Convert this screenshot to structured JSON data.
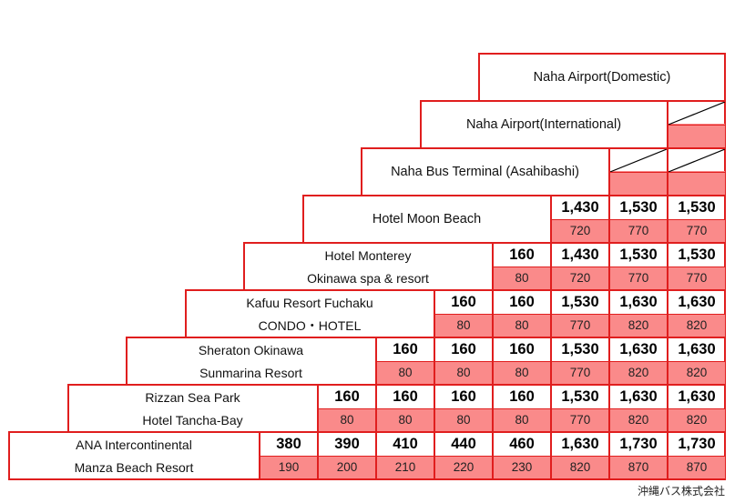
{
  "stops": [
    {
      "id": "domestic",
      "lines": [
        "Naha Airport(Domestic)"
      ]
    },
    {
      "id": "international",
      "lines": [
        "Naha Airport(International)"
      ]
    },
    {
      "id": "bus-terminal",
      "lines": [
        "Naha Bus Terminal (Asahibashi)"
      ]
    },
    {
      "id": "moon-beach",
      "lines": [
        "Hotel  Moon  Beach"
      ]
    },
    {
      "id": "monterey",
      "lines": [
        "Hotel Monterey",
        "Okinawa spa & resort"
      ]
    },
    {
      "id": "kafuu",
      "lines": [
        "Kafuu Resort Fuchaku",
        "CONDO・HOTEL"
      ]
    },
    {
      "id": "sheraton",
      "lines": [
        "Sheraton Okinawa",
        "Sunmarina Resort"
      ]
    },
    {
      "id": "rizzan",
      "lines": [
        "Rizzan Sea Park",
        "Hotel Tancha-Bay"
      ]
    },
    {
      "id": "ana",
      "lines": [
        "ANA Intercontinental",
        "Manza Beach Resort"
      ]
    }
  ],
  "fares": [
    [],
    [],
    [],
    [
      {
        "adult": "1,430",
        "child": "720"
      },
      {
        "adult": "1,530",
        "child": "770"
      },
      {
        "adult": "1,530",
        "child": "770"
      }
    ],
    [
      {
        "adult": "160",
        "child": "80"
      },
      {
        "adult": "1,430",
        "child": "720"
      },
      {
        "adult": "1,530",
        "child": "770"
      },
      {
        "adult": "1,530",
        "child": "770"
      }
    ],
    [
      {
        "adult": "160",
        "child": "80"
      },
      {
        "adult": "160",
        "child": "80"
      },
      {
        "adult": "1,530",
        "child": "770"
      },
      {
        "adult": "1,630",
        "child": "820"
      },
      {
        "adult": "1,630",
        "child": "820"
      }
    ],
    [
      {
        "adult": "160",
        "child": "80"
      },
      {
        "adult": "160",
        "child": "80"
      },
      {
        "adult": "160",
        "child": "80"
      },
      {
        "adult": "1,530",
        "child": "770"
      },
      {
        "adult": "1,630",
        "child": "820"
      },
      {
        "adult": "1,630",
        "child": "820"
      }
    ],
    [
      {
        "adult": "160",
        "child": "80"
      },
      {
        "adult": "160",
        "child": "80"
      },
      {
        "adult": "160",
        "child": "80"
      },
      {
        "adult": "160",
        "child": "80"
      },
      {
        "adult": "1,530",
        "child": "770"
      },
      {
        "adult": "1,630",
        "child": "820"
      },
      {
        "adult": "1,630",
        "child": "820"
      }
    ],
    [
      {
        "adult": "380",
        "child": "190"
      },
      {
        "adult": "390",
        "child": "200"
      },
      {
        "adult": "410",
        "child": "210"
      },
      {
        "adult": "440",
        "child": "220"
      },
      {
        "adult": "460",
        "child": "230"
      },
      {
        "adult": "1,630",
        "child": "820"
      },
      {
        "adult": "1,730",
        "child": "870"
      },
      {
        "adult": "1,730",
        "child": "870"
      }
    ]
  ],
  "credit": "沖縄バス株式会社",
  "colors": {
    "border": "#e01e1e",
    "child_fill": "#fa8a8a"
  }
}
